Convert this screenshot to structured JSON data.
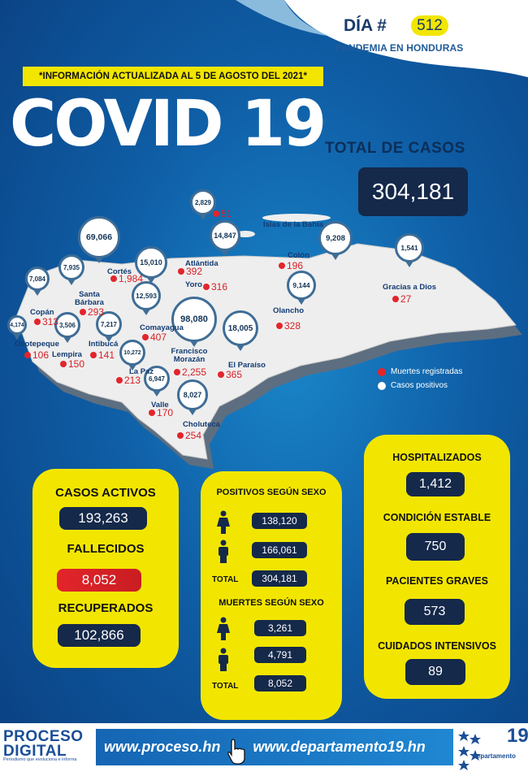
{
  "header": {
    "dia_label": "DÍA #",
    "dia_number": "512",
    "subtitle": "PANDEMIA EN HONDURAS",
    "info_banner": "*INFORMACIÓN ACTUALIZADA AL 5 DE AGOSTO DEL 2021*",
    "title": "COVID 19"
  },
  "total": {
    "label": "TOTAL DE CASOS",
    "value": "304,181"
  },
  "map": {
    "departments": [
      {
        "name": "Islas de la Bahía",
        "cases": "2,829",
        "deaths": "51"
      },
      {
        "name": "Cortés",
        "cases": "69,066",
        "deaths": "1,984"
      },
      {
        "name": "Atlántida",
        "cases": "15,010",
        "deaths": "392"
      },
      {
        "name": "Colón",
        "cases": "9,208",
        "deaths": "196"
      },
      {
        "name": "Gracias a Dios",
        "cases": "1,541",
        "deaths": "27"
      },
      {
        "name": "Santa Bárbara",
        "cases": "7,935",
        "deaths": "293"
      },
      {
        "name": "Copán",
        "cases": "7,084",
        "deaths": "313"
      },
      {
        "name": "Yoro",
        "cases": "12,593",
        "deaths": "316"
      },
      {
        "name": "Olancho",
        "cases": "9,144",
        "deaths": "328"
      },
      {
        "name": "Ocotepeque",
        "cases": "4,174",
        "deaths": "106"
      },
      {
        "name": "Lempira",
        "cases": "3,506",
        "deaths": "150"
      },
      {
        "name": "Intibucá",
        "cases": "7,217",
        "deaths": "141"
      },
      {
        "name": "Comayagua",
        "cases": "",
        "deaths": "407"
      },
      {
        "name": "Francisco Morazán",
        "cases": "98,080",
        "deaths": "2,255"
      },
      {
        "name": "El Paraíso",
        "cases": "18,005",
        "deaths": "365"
      },
      {
        "name": "La Paz",
        "cases": "10,272",
        "deaths": "213"
      },
      {
        "name": "Valle",
        "cases": "6,947",
        "deaths": "170"
      },
      {
        "name": "Choluteca",
        "cases": "8,027",
        "deaths": "254"
      }
    ],
    "extra_pin": "14,847"
  },
  "legend": {
    "deaths": "Muertes registradas",
    "positives": "Casos positivos"
  },
  "left_panel": {
    "activos_label": "CASOS ACTIVOS",
    "activos_value": "193,263",
    "fallecidos_label": "FALLECIDOS",
    "fallecidos_value": "8,052",
    "recuperados_label": "RECUPERADOS",
    "recuperados_value": "102,866"
  },
  "middle_panel": {
    "positivos_title": "POSITIVOS SEGÚN SEXO",
    "positivos_female": "138,120",
    "positivos_male": "166,061",
    "total_label": "TOTAL",
    "positivos_total": "304,181",
    "muertes_title": "MUERTES SEGÚN SEXO",
    "muertes_female": "3,261",
    "muertes_male": "4,791",
    "muertes_total": "8,052"
  },
  "right_panel": {
    "hosp_label": "HOSPITALIZADOS",
    "hosp_value": "1,412",
    "estable_label": "CONDICIÓN ESTABLE",
    "estable_value": "750",
    "graves_label": "PACIENTES GRAVES",
    "graves_value": "573",
    "uci_label": "CUIDADOS INTENSIVOS",
    "uci_value": "89"
  },
  "footer": {
    "logo_line1": "PROCESO",
    "logo_line2": "DIGITAL",
    "slogan": "Periodismo que evoluciona e informa",
    "url1": "www.proceso.hn",
    "url2": "www.departamento19.hn",
    "dep_number": "19",
    "dep_text": "departamento"
  },
  "colors": {
    "yellow": "#f2e600",
    "navy": "#15294a",
    "red": "#e2252b",
    "blue": "#0f5ea6"
  }
}
